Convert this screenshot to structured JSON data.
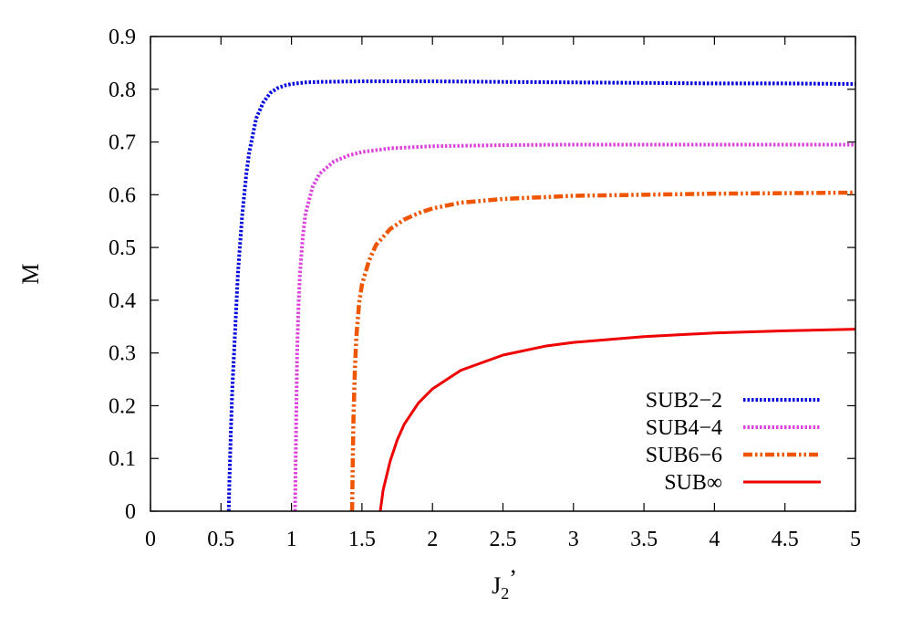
{
  "chart_data": {
    "type": "line",
    "title": "",
    "xlabel": "J",
    "xlabel_sub": "2",
    "xlabel_suffix": "’",
    "ylabel": "M",
    "xlim": [
      0,
      5
    ],
    "ylim": [
      0,
      0.9
    ],
    "xticks": [
      0,
      0.5,
      1,
      1.5,
      2,
      2.5,
      3,
      3.5,
      4,
      4.5,
      5
    ],
    "xtick_labels": [
      "0",
      "0.5",
      "1",
      "1.5",
      "2",
      "2.5",
      "3",
      "3.5",
      "4",
      "4.5",
      "5"
    ],
    "yticks": [
      0,
      0.1,
      0.2,
      0.3,
      0.4,
      0.5,
      0.6,
      0.7,
      0.8,
      0.9
    ],
    "ytick_labels": [
      "0",
      "0.1",
      "0.2",
      "0.3",
      "0.4",
      "0.5",
      "0.6",
      "0.7",
      "0.8",
      "0.9"
    ],
    "grid": false,
    "legend_position": "bottom-right",
    "series": [
      {
        "name": "SUB2−2",
        "color": "#0000dd",
        "dash": "dotted",
        "x": [
          0.555,
          0.56,
          0.57,
          0.58,
          0.6,
          0.62,
          0.65,
          0.68,
          0.7,
          0.75,
          0.8,
          0.85,
          0.9,
          0.95,
          1.0,
          1.1,
          1.2,
          1.5,
          2.0,
          2.5,
          3.0,
          3.5,
          4.0,
          4.5,
          5.0
        ],
        "values": [
          0,
          0.06,
          0.15,
          0.23,
          0.34,
          0.45,
          0.56,
          0.64,
          0.68,
          0.745,
          0.775,
          0.793,
          0.802,
          0.807,
          0.81,
          0.813,
          0.814,
          0.815,
          0.815,
          0.814,
          0.813,
          0.812,
          0.811,
          0.811,
          0.81
        ]
      },
      {
        "name": "SUB4−4",
        "color": "#dd44dd",
        "dash": "dotted",
        "x": [
          1.025,
          1.03,
          1.035,
          1.04,
          1.05,
          1.06,
          1.08,
          1.1,
          1.15,
          1.2,
          1.3,
          1.4,
          1.5,
          1.7,
          2.0,
          2.5,
          3.0,
          3.5,
          4.0,
          4.5,
          5.0
        ],
        "values": [
          0,
          0.1,
          0.2,
          0.3,
          0.39,
          0.45,
          0.52,
          0.565,
          0.615,
          0.64,
          0.663,
          0.674,
          0.681,
          0.688,
          0.692,
          0.694,
          0.695,
          0.695,
          0.695,
          0.695,
          0.695
        ]
      },
      {
        "name": "SUB6−6",
        "color": "#ee5500",
        "dash": "dashdot",
        "x": [
          1.43,
          1.435,
          1.44,
          1.45,
          1.46,
          1.48,
          1.5,
          1.55,
          1.6,
          1.7,
          1.8,
          1.9,
          2.0,
          2.2,
          2.5,
          3.0,
          3.5,
          4.0,
          4.5,
          5.0
        ],
        "values": [
          0,
          0.1,
          0.18,
          0.27,
          0.33,
          0.395,
          0.43,
          0.475,
          0.505,
          0.535,
          0.553,
          0.565,
          0.574,
          0.585,
          0.592,
          0.598,
          0.6,
          0.602,
          0.603,
          0.604
        ]
      },
      {
        "name": "SUB∞",
        "color": "#ee0000",
        "dash": "solid",
        "x": [
          1.63,
          1.65,
          1.7,
          1.75,
          1.8,
          1.9,
          2.0,
          2.2,
          2.5,
          2.8,
          3.0,
          3.5,
          4.0,
          4.5,
          5.0
        ],
        "values": [
          0,
          0.04,
          0.095,
          0.135,
          0.165,
          0.205,
          0.232,
          0.267,
          0.296,
          0.313,
          0.32,
          0.331,
          0.338,
          0.342,
          0.345
        ]
      }
    ]
  }
}
